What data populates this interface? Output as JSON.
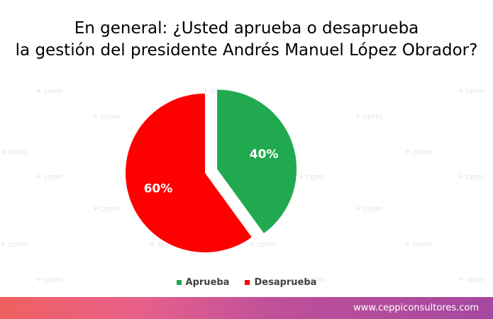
{
  "title": {
    "line1": "En general: ¿Usted aprueba o desaprueba",
    "line2": "la gestión del presidente Andrés Manuel López Obrador?"
  },
  "watermark_text": "CEPPI",
  "chart_data": {
    "type": "pie",
    "title": "En general: ¿Usted aprueba o desaprueba la gestión del presidente Andrés Manuel López Obrador?",
    "categories": [
      "Aprueba",
      "Desaprueba"
    ],
    "values": [
      40,
      60
    ],
    "labels": [
      "40%",
      "60%"
    ],
    "colors": [
      "#21a94f",
      "#ff0000"
    ],
    "exploded": "Aprueba",
    "legend": "bottom"
  },
  "legend": [
    {
      "label": "Aprueba",
      "color": "#21a94f"
    },
    {
      "label": "Desaprueba",
      "color": "#ff0000"
    }
  ],
  "footer": {
    "url": "www.ceppiconsultores.com"
  }
}
